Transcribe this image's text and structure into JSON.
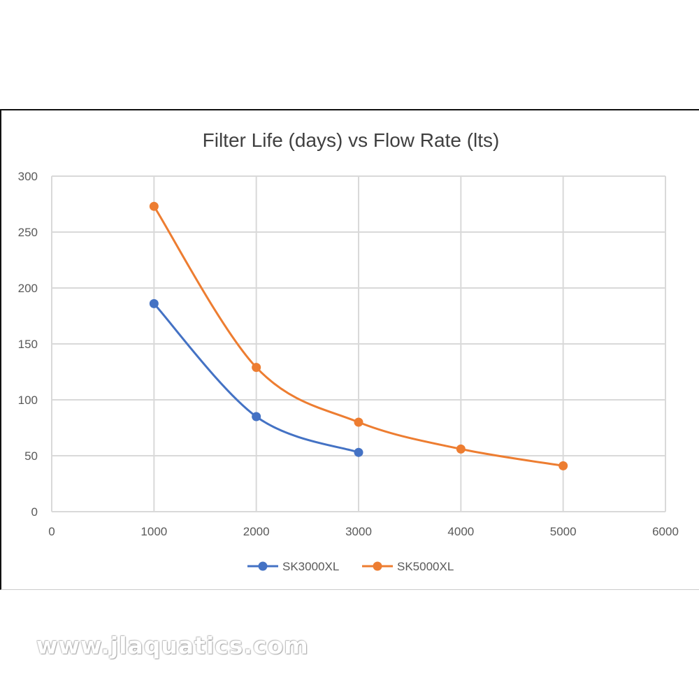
{
  "chart_data": {
    "type": "line",
    "title": "Filter Life (days) vs Flow Rate (lts)",
    "xlabel": "",
    "ylabel": "",
    "xlim": [
      0,
      6000
    ],
    "ylim": [
      0,
      300
    ],
    "xticks": [
      "0",
      "1000",
      "2000",
      "3000",
      "4000",
      "5000",
      "6000"
    ],
    "yticks": [
      "0",
      "50",
      "100",
      "150",
      "200",
      "250",
      "300"
    ],
    "grid": true,
    "smooth": true,
    "legend_position": "bottom",
    "series": [
      {
        "name": "SK3000XL",
        "color": "#4472C4",
        "x": [
          1000,
          2000,
          3000
        ],
        "y": [
          186,
          85,
          53
        ]
      },
      {
        "name": "SK5000XL",
        "color": "#ED7D31",
        "x": [
          1000,
          2000,
          3000,
          4000,
          5000
        ],
        "y": [
          273,
          129,
          80,
          56,
          41
        ]
      }
    ]
  },
  "watermark": "www.jlaquatics.com"
}
